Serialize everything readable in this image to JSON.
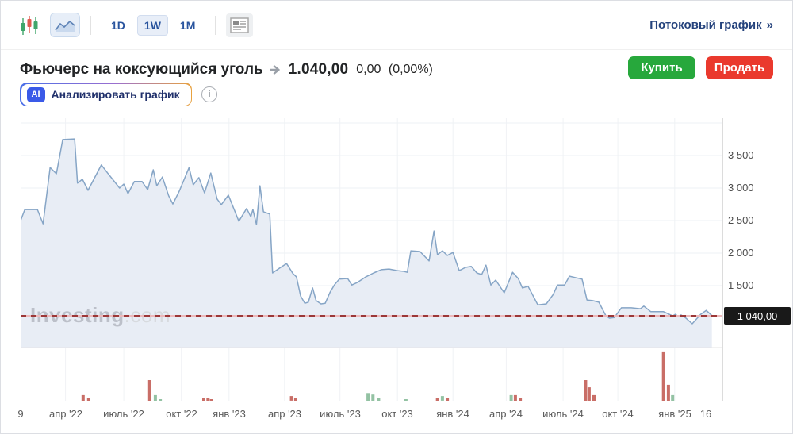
{
  "toolbar": {
    "periods": [
      {
        "label": "1D",
        "selected": false
      },
      {
        "label": "1W",
        "selected": true
      },
      {
        "label": "1M",
        "selected": false
      }
    ],
    "streaming_link": "Потоковый график",
    "streaming_chevron": "»"
  },
  "header": {
    "title": "Фьючерс на коксующийся уголь",
    "price": "1.040,00",
    "change": "0,00",
    "change_pct": "(0,00%)",
    "buy_label": "Купить",
    "sell_label": "Продать"
  },
  "ai_bar": {
    "badge": "AI",
    "label": "Анализировать график",
    "info": "i"
  },
  "watermark": {
    "bold": "Investing",
    "light": ".com"
  },
  "chart_data": {
    "type": "area",
    "title": "Фьючерс на коксующийся уголь — недельный график (1W)",
    "ylim": [
      549,
      4073
    ],
    "yticks": [
      {
        "value": 3500,
        "label": "3 500"
      },
      {
        "value": 3000,
        "label": "3 000"
      },
      {
        "value": 2500,
        "label": "2 500"
      },
      {
        "value": 2000,
        "label": "2 000"
      },
      {
        "value": 1500,
        "label": "1 500"
      }
    ],
    "gridline_values": [
      4000,
      3500,
      3000,
      2500,
      2000,
      1500
    ],
    "current_price": 1040,
    "current_price_label": "1 040,00",
    "xticks": [
      {
        "pos": 0.0,
        "label": "9",
        "grid": false
      },
      {
        "pos": 0.064,
        "label": "апр '22",
        "grid": true
      },
      {
        "pos": 0.147,
        "label": "июль '22",
        "grid": true
      },
      {
        "pos": 0.229,
        "label": "окт '22",
        "grid": true
      },
      {
        "pos": 0.297,
        "label": "янв '23",
        "grid": true
      },
      {
        "pos": 0.376,
        "label": "апр '23",
        "grid": true
      },
      {
        "pos": 0.455,
        "label": "июль '23",
        "grid": true
      },
      {
        "pos": 0.537,
        "label": "окт '23",
        "grid": true
      },
      {
        "pos": 0.616,
        "label": "янв '24",
        "grid": true
      },
      {
        "pos": 0.692,
        "label": "апр '24",
        "grid": true
      },
      {
        "pos": 0.773,
        "label": "июль '24",
        "grid": true
      },
      {
        "pos": 0.851,
        "label": "окт '24",
        "grid": true
      },
      {
        "pos": 0.932,
        "label": "янв '25",
        "grid": true
      },
      {
        "pos": 0.976,
        "label": "16",
        "grid": false
      }
    ],
    "price_series": {
      "name": "Цена",
      "points": [
        [
          0.0,
          2500
        ],
        [
          0.006,
          2670
        ],
        [
          0.024,
          2670
        ],
        [
          0.032,
          2450
        ],
        [
          0.042,
          3315
        ],
        [
          0.051,
          3220
        ],
        [
          0.06,
          3745
        ],
        [
          0.077,
          3755
        ],
        [
          0.081,
          3075
        ],
        [
          0.088,
          3135
        ],
        [
          0.096,
          2965
        ],
        [
          0.115,
          3355
        ],
        [
          0.124,
          3230
        ],
        [
          0.141,
          3000
        ],
        [
          0.147,
          3060
        ],
        [
          0.153,
          2915
        ],
        [
          0.162,
          3100
        ],
        [
          0.173,
          3100
        ],
        [
          0.181,
          2975
        ],
        [
          0.189,
          3280
        ],
        [
          0.194,
          3035
        ],
        [
          0.202,
          3170
        ],
        [
          0.211,
          2880
        ],
        [
          0.217,
          2755
        ],
        [
          0.226,
          2950
        ],
        [
          0.24,
          3315
        ],
        [
          0.246,
          3050
        ],
        [
          0.254,
          3160
        ],
        [
          0.262,
          2925
        ],
        [
          0.271,
          3230
        ],
        [
          0.28,
          2830
        ],
        [
          0.286,
          2745
        ],
        [
          0.296,
          2890
        ],
        [
          0.311,
          2490
        ],
        [
          0.322,
          2685
        ],
        [
          0.328,
          2560
        ],
        [
          0.331,
          2670
        ],
        [
          0.336,
          2440
        ],
        [
          0.341,
          3035
        ],
        [
          0.346,
          2635
        ],
        [
          0.355,
          2600
        ],
        [
          0.359,
          1695
        ],
        [
          0.369,
          1770
        ],
        [
          0.379,
          1840
        ],
        [
          0.388,
          1685
        ],
        [
          0.393,
          1635
        ],
        [
          0.399,
          1340
        ],
        [
          0.405,
          1230
        ],
        [
          0.41,
          1245
        ],
        [
          0.416,
          1465
        ],
        [
          0.421,
          1270
        ],
        [
          0.428,
          1220
        ],
        [
          0.434,
          1230
        ],
        [
          0.441,
          1400
        ],
        [
          0.447,
          1510
        ],
        [
          0.454,
          1600
        ],
        [
          0.466,
          1610
        ],
        [
          0.472,
          1510
        ],
        [
          0.48,
          1550
        ],
        [
          0.492,
          1635
        ],
        [
          0.503,
          1695
        ],
        [
          0.514,
          1745
        ],
        [
          0.525,
          1755
        ],
        [
          0.537,
          1730
        ],
        [
          0.546,
          1720
        ],
        [
          0.551,
          1705
        ],
        [
          0.556,
          2035
        ],
        [
          0.569,
          2025
        ],
        [
          0.582,
          1880
        ],
        [
          0.589,
          2340
        ],
        [
          0.594,
          1975
        ],
        [
          0.601,
          2035
        ],
        [
          0.608,
          1965
        ],
        [
          0.616,
          2010
        ],
        [
          0.625,
          1730
        ],
        [
          0.634,
          1780
        ],
        [
          0.642,
          1795
        ],
        [
          0.65,
          1695
        ],
        [
          0.657,
          1670
        ],
        [
          0.663,
          1815
        ],
        [
          0.67,
          1510
        ],
        [
          0.677,
          1585
        ],
        [
          0.689,
          1390
        ],
        [
          0.701,
          1705
        ],
        [
          0.709,
          1610
        ],
        [
          0.715,
          1465
        ],
        [
          0.723,
          1490
        ],
        [
          0.737,
          1205
        ],
        [
          0.749,
          1220
        ],
        [
          0.759,
          1365
        ],
        [
          0.765,
          1510
        ],
        [
          0.775,
          1510
        ],
        [
          0.782,
          1645
        ],
        [
          0.792,
          1620
        ],
        [
          0.8,
          1600
        ],
        [
          0.807,
          1280
        ],
        [
          0.815,
          1270
        ],
        [
          0.824,
          1245
        ],
        [
          0.834,
          1035
        ],
        [
          0.839,
          1000
        ],
        [
          0.846,
          1010
        ],
        [
          0.856,
          1160
        ],
        [
          0.87,
          1160
        ],
        [
          0.883,
          1145
        ],
        [
          0.888,
          1185
        ],
        [
          0.898,
          1100
        ],
        [
          0.916,
          1100
        ],
        [
          0.929,
          1035
        ],
        [
          0.933,
          1060
        ],
        [
          0.937,
          1025
        ],
        [
          0.941,
          1050
        ],
        [
          0.947,
          1010
        ],
        [
          0.957,
          915
        ],
        [
          0.969,
          1060
        ],
        [
          0.977,
          1120
        ],
        [
          0.985,
          1040
        ]
      ]
    },
    "volume_bars": [
      {
        "x": 0.089,
        "h": 0.11,
        "dir": "down"
      },
      {
        "x": 0.097,
        "h": 0.05,
        "dir": "down"
      },
      {
        "x": 0.184,
        "h": 0.4,
        "dir": "down"
      },
      {
        "x": 0.192,
        "h": 0.11,
        "dir": "up"
      },
      {
        "x": 0.199,
        "h": 0.03,
        "dir": "up"
      },
      {
        "x": 0.261,
        "h": 0.05,
        "dir": "down"
      },
      {
        "x": 0.267,
        "h": 0.05,
        "dir": "down"
      },
      {
        "x": 0.272,
        "h": 0.03,
        "dir": "down"
      },
      {
        "x": 0.386,
        "h": 0.09,
        "dir": "down"
      },
      {
        "x": 0.392,
        "h": 0.06,
        "dir": "down"
      },
      {
        "x": 0.495,
        "h": 0.15,
        "dir": "up"
      },
      {
        "x": 0.502,
        "h": 0.12,
        "dir": "up"
      },
      {
        "x": 0.51,
        "h": 0.05,
        "dir": "up"
      },
      {
        "x": 0.549,
        "h": 0.03,
        "dir": "up"
      },
      {
        "x": 0.594,
        "h": 0.06,
        "dir": "down"
      },
      {
        "x": 0.601,
        "h": 0.09,
        "dir": "up"
      },
      {
        "x": 0.608,
        "h": 0.06,
        "dir": "down"
      },
      {
        "x": 0.699,
        "h": 0.11,
        "dir": "up"
      },
      {
        "x": 0.705,
        "h": 0.11,
        "dir": "down"
      },
      {
        "x": 0.712,
        "h": 0.05,
        "dir": "down"
      },
      {
        "x": 0.805,
        "h": 0.4,
        "dir": "down"
      },
      {
        "x": 0.81,
        "h": 0.26,
        "dir": "down"
      },
      {
        "x": 0.817,
        "h": 0.11,
        "dir": "down"
      },
      {
        "x": 0.916,
        "h": 0.94,
        "dir": "down"
      },
      {
        "x": 0.923,
        "h": 0.31,
        "dir": "down"
      },
      {
        "x": 0.929,
        "h": 0.11,
        "dir": "up"
      }
    ],
    "colors": {
      "line": "#86a5c6",
      "fill": "#e8edf5",
      "grid_h": "#eef1f5",
      "grid_v": "#f0f2f5",
      "separator": "#e4e4e6",
      "axis": "#d7d7da",
      "up": "#93c2a3",
      "down": "#c96e67",
      "current_line": "#9c3838",
      "tag_bg": "#191919",
      "buy": "#27a83c",
      "sell": "#ea392d"
    }
  }
}
